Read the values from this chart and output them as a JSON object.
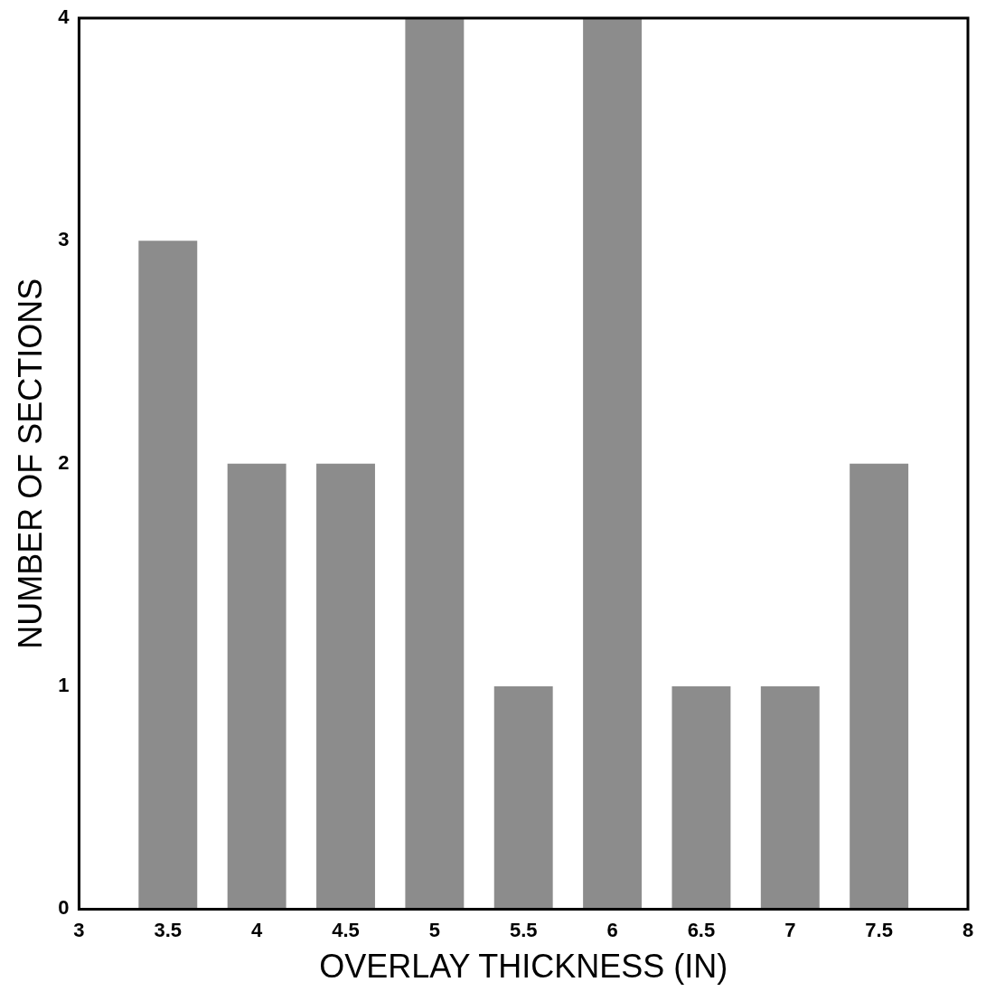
{
  "chart_data": {
    "type": "bar",
    "xlabel": "OVERLAY THICKNESS (IN)",
    "ylabel": "NUMBER OF SECTIONS",
    "x": [
      3.5,
      4,
      4.5,
      5,
      5.5,
      6,
      6.5,
      7,
      7.5
    ],
    "values": [
      3,
      2,
      2,
      4,
      1,
      4,
      1,
      1,
      2
    ],
    "color": "#8c8c8c",
    "xlim": [
      3,
      8
    ],
    "xticks": [
      3,
      3.5,
      4,
      4.5,
      5,
      5.5,
      6,
      6.5,
      7,
      7.5,
      8
    ],
    "ylim": [
      0,
      4
    ],
    "yticks": [
      0,
      1,
      2,
      3,
      4
    ]
  }
}
